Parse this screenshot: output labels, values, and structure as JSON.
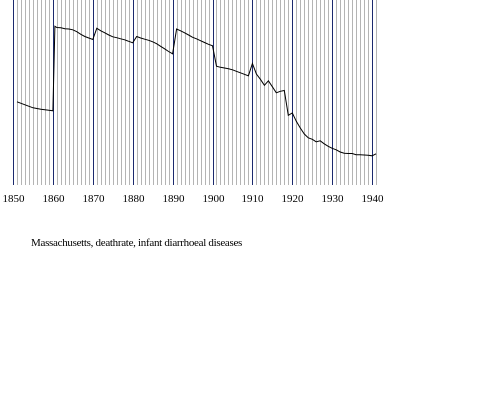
{
  "chart_data": {
    "type": "line",
    "title": "",
    "xlabel": "",
    "ylabel": "",
    "caption": "Massachusetts, deathrate, infant diarrhoeal diseases",
    "x_range": [
      1850,
      1941
    ],
    "y_range": [
      0,
      100
    ],
    "major_ticks": [
      1850,
      1860,
      1870,
      1880,
      1890,
      1900,
      1910,
      1920,
      1930,
      1940
    ],
    "major_tick_labels": [
      "1850",
      "1860",
      "1870",
      "1880",
      "1890",
      "1900",
      "1910",
      "1920",
      "1930",
      "1940"
    ],
    "minor_grid_step": 1,
    "grid": true,
    "y_axis_shown": false,
    "line_color": "#000000",
    "major_grid_color": "#1c2a6e",
    "minor_grid_color": "#b4b4b4",
    "series": [
      {
        "values": [
          [
            1851,
            45.5
          ],
          [
            1852,
            44.5
          ],
          [
            1853,
            43.5
          ],
          [
            1854,
            42.5
          ],
          [
            1855,
            41.5
          ],
          [
            1856,
            41.0
          ],
          [
            1857,
            40.5
          ],
          [
            1858,
            40.2
          ],
          [
            1859,
            39.8
          ],
          [
            1860,
            39.5
          ],
          [
            1860.5,
            95.8
          ],
          [
            1861,
            95.0
          ],
          [
            1862,
            94.8
          ],
          [
            1863,
            94.2
          ],
          [
            1864,
            94.0
          ],
          [
            1865,
            93.5
          ],
          [
            1866,
            92.2
          ],
          [
            1867,
            90.5
          ],
          [
            1868,
            89.0
          ],
          [
            1869,
            88.0
          ],
          [
            1870,
            87.0
          ],
          [
            1871,
            94.5
          ],
          [
            1872,
            92.8
          ],
          [
            1873,
            91.5
          ],
          [
            1874,
            90.0
          ],
          [
            1875,
            88.8
          ],
          [
            1876,
            88.2
          ],
          [
            1877,
            87.5
          ],
          [
            1878,
            86.8
          ],
          [
            1879,
            85.8
          ],
          [
            1880,
            84.8
          ],
          [
            1881,
            89.0
          ],
          [
            1882,
            88.0
          ],
          [
            1883,
            87.2
          ],
          [
            1884,
            86.5
          ],
          [
            1885,
            85.5
          ],
          [
            1886,
            84.2
          ],
          [
            1887,
            82.5
          ],
          [
            1888,
            80.8
          ],
          [
            1889,
            79.0
          ],
          [
            1890,
            77.5
          ],
          [
            1891,
            94.0
          ],
          [
            1892,
            92.8
          ],
          [
            1893,
            91.5
          ],
          [
            1894,
            90.0
          ],
          [
            1895,
            88.5
          ],
          [
            1896,
            87.5
          ],
          [
            1897,
            86.2
          ],
          [
            1898,
            85.0
          ],
          [
            1899,
            83.8
          ],
          [
            1900,
            82.8
          ],
          [
            1901,
            69.2
          ],
          [
            1902,
            68.5
          ],
          [
            1903,
            68.0
          ],
          [
            1904,
            67.5
          ],
          [
            1905,
            66.8
          ],
          [
            1906,
            65.8
          ],
          [
            1907,
            64.8
          ],
          [
            1908,
            63.8
          ],
          [
            1909,
            62.8
          ],
          [
            1910,
            71.0
          ],
          [
            1911,
            64.0
          ],
          [
            1912,
            60.5
          ],
          [
            1913,
            56.5
          ],
          [
            1914,
            59.5
          ],
          [
            1915,
            55.5
          ],
          [
            1916,
            51.5
          ],
          [
            1917,
            52.5
          ],
          [
            1918,
            53.0
          ],
          [
            1919,
            36.5
          ],
          [
            1920,
            38.0
          ],
          [
            1921,
            32.5
          ],
          [
            1922,
            28.0
          ],
          [
            1923,
            24.0
          ],
          [
            1924,
            21.5
          ],
          [
            1925,
            20.5
          ],
          [
            1926,
            18.8
          ],
          [
            1927,
            19.5
          ],
          [
            1928,
            17.5
          ],
          [
            1929,
            15.8
          ],
          [
            1930,
            14.5
          ],
          [
            1931,
            13.5
          ],
          [
            1932,
            12.0
          ],
          [
            1933,
            11.2
          ],
          [
            1934,
            11.0
          ],
          [
            1935,
            11.0
          ],
          [
            1936,
            10.2
          ],
          [
            1937,
            10.2
          ],
          [
            1938,
            10.0
          ],
          [
            1939,
            9.8
          ],
          [
            1940,
            9.5
          ],
          [
            1941,
            10.8
          ]
        ]
      }
    ]
  }
}
